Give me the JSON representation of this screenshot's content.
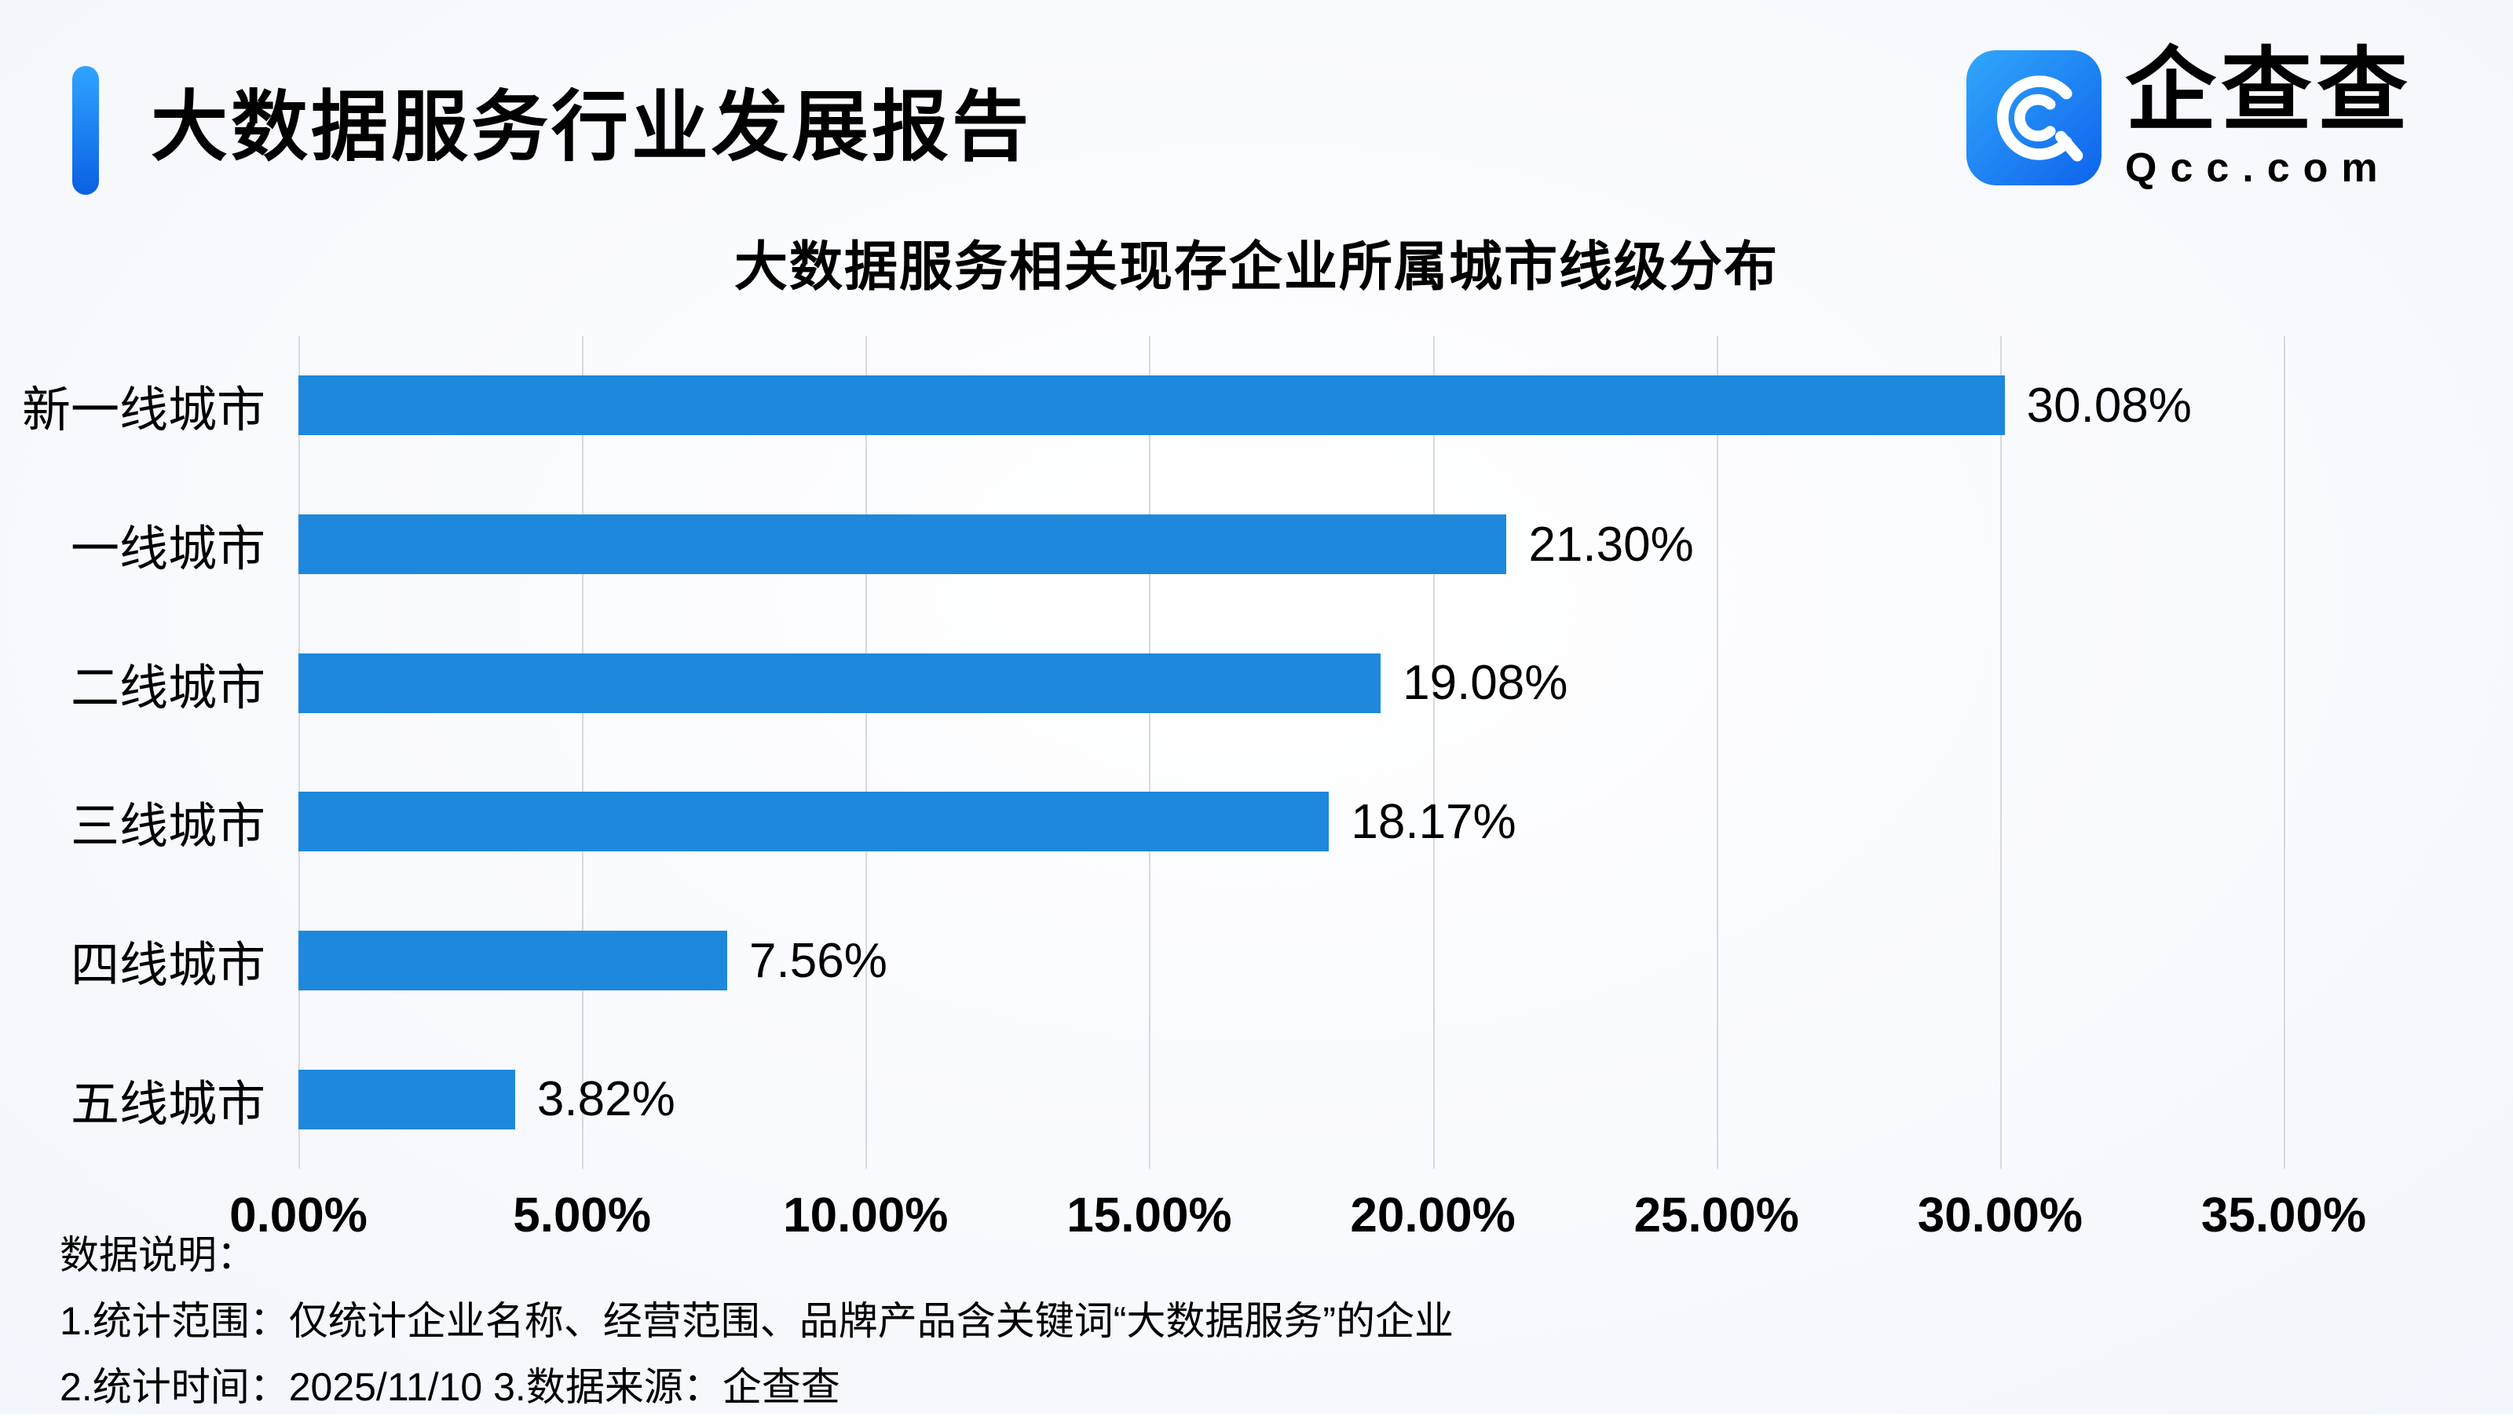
{
  "header": {
    "report_title": "大数据服务行业发展报告",
    "logo": {
      "name": "企查查",
      "domain": "Qcc.com"
    }
  },
  "chart_data": {
    "type": "bar",
    "orientation": "horizontal",
    "title": "大数据服务相关现存企业所属城市线级分布",
    "categories": [
      "新一线城市",
      "一线城市",
      "二线城市",
      "三线城市",
      "四线城市",
      "五线城市"
    ],
    "values": [
      30.08,
      21.3,
      19.08,
      18.17,
      7.56,
      3.82
    ],
    "value_labels": [
      "30.08%",
      "21.30%",
      "19.08%",
      "18.17%",
      "7.56%",
      "3.82%"
    ],
    "xlim": [
      0,
      35
    ],
    "x_ticks": [
      "0.00%",
      "5.00%",
      "10.00%",
      "15.00%",
      "20.00%",
      "25.00%",
      "30.00%",
      "35.00%"
    ],
    "grid": true,
    "legend": false,
    "bar_color": "#1E88DC"
  },
  "footer": {
    "label": "数据说明：",
    "note1": "1.统计范围：仅统计企业名称、经营范围、品牌产品含关键词“大数据服务”的企业",
    "note2": "2.统计时间：2025/11/10  3.数据来源：企查查"
  }
}
